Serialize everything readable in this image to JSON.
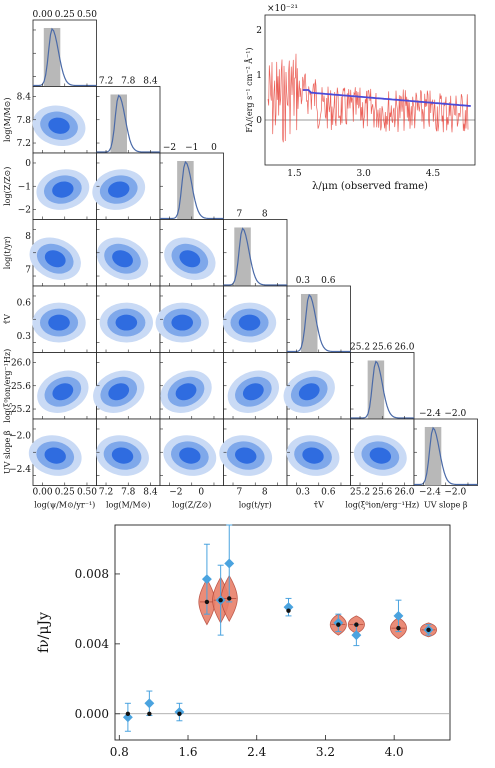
{
  "corner": {
    "params": [
      "log(ψ/M⊙/yr⁻¹)",
      "log(M/M⊙)",
      "log(Z/Z⊙)",
      "log(t/yr)",
      "τ̂V",
      "log(ξ⁰ion/erg⁻¹Hz)",
      "UV slope β"
    ],
    "ylabels": [
      "log(M/M⊙)",
      "log(Z/Z⊙)",
      "log(t/yr)",
      "τ̂V",
      "log(ξ⁰ion/erg⁻¹Hz)",
      "UV slope β"
    ],
    "top_ticks": [
      [
        "0.00",
        "0.25",
        "0.50"
      ],
      [
        "7.2",
        "7.8",
        "8.4"
      ],
      [
        "−2",
        "−1",
        "0"
      ],
      [
        "7",
        "8"
      ],
      [
        "0.3",
        "0.6"
      ],
      [
        "25.2",
        "25.6",
        "26.0"
      ],
      [
        "−2.4",
        "−2.0"
      ]
    ],
    "bottom_ticks": [
      [
        "0.00",
        "0.25",
        "0.50"
      ],
      [
        "7.2",
        "7.8",
        "8.4"
      ],
      [
        "−2",
        "0"
      ],
      [
        "7",
        "8"
      ],
      [
        "0.3",
        "0.6"
      ],
      [
        "25.2",
        "25.6",
        "26.0"
      ],
      [
        "−2.4",
        "−2.0"
      ]
    ],
    "left_ticks": [
      [
        "8.4",
        "7.8",
        "7.2"
      ],
      [
        "0",
        "−1",
        "−2"
      ],
      [
        "8",
        "7"
      ],
      [
        "0.6",
        "0.3"
      ],
      [
        "26.0",
        "25.6",
        "25.2"
      ],
      [
        "−2.0",
        "−2.4"
      ]
    ],
    "colors": {
      "line": "#4a6aa8",
      "shade": "#b8b8b8",
      "c1": "#2f6ce0",
      "c2": "#7fa8ea",
      "c3": "#c9daf5"
    }
  },
  "spectrum": {
    "exponent": "×10⁻²¹",
    "ylabel": "Fλ/(erg s⁻¹ cm⁻² Å⁻¹)",
    "xlabel": "λ/μm (observed frame)",
    "xticks": [
      "1.5",
      "3.0",
      "4.5"
    ],
    "yticks": [
      "2",
      "1",
      "0"
    ],
    "colors": {
      "data": "#e8453c",
      "model": "#4a4ad8"
    }
  },
  "chart_data": {
    "type": "scatter",
    "xlabel": "",
    "ylabel": "fν/μJy",
    "xlim": [
      0.75,
      4.65
    ],
    "ylim": [
      -0.0015,
      0.0108
    ],
    "xticks": [
      "0.8",
      "1.6",
      "2.4",
      "3.2",
      "4.0"
    ],
    "yticks": [
      "0.008",
      "0.004",
      "0.000"
    ],
    "colors": {
      "observed": "#4aa3df",
      "model": "#111111",
      "violin": "#e8806a",
      "violin_edge": "#b84a3a"
    },
    "observed": [
      {
        "x": 0.9,
        "y": -0.0002,
        "yerr": 0.0008
      },
      {
        "x": 1.15,
        "y": 0.0006,
        "yerr": 0.0007
      },
      {
        "x": 1.5,
        "y": 0.0001,
        "yerr": 0.0005
      },
      {
        "x": 1.82,
        "y": 0.0077,
        "yerr": 0.002
      },
      {
        "x": 1.98,
        "y": 0.0065,
        "yerr": 0.002
      },
      {
        "x": 2.08,
        "y": 0.0086,
        "yerr": 0.0022
      },
      {
        "x": 2.77,
        "y": 0.0061,
        "yerr": 0.0005
      },
      {
        "x": 3.35,
        "y": 0.0052,
        "yerr": 0.0005
      },
      {
        "x": 3.56,
        "y": 0.0045,
        "yerr": 0.0006
      },
      {
        "x": 4.05,
        "y": 0.0056,
        "yerr": 0.0009
      },
      {
        "x": 4.4,
        "y": 0.0048,
        "yerr": 0.0003
      }
    ],
    "model": [
      {
        "x": 0.9,
        "y": 0.0
      },
      {
        "x": 1.15,
        "y": 0.0
      },
      {
        "x": 1.5,
        "y": 0.0
      },
      {
        "x": 1.82,
        "y": 0.0064,
        "spread": 0.0013
      },
      {
        "x": 1.98,
        "y": 0.0065,
        "spread": 0.0013
      },
      {
        "x": 2.08,
        "y": 0.0066,
        "spread": 0.0013
      },
      {
        "x": 2.77,
        "y": 0.0059
      },
      {
        "x": 3.35,
        "y": 0.0051,
        "spread": 0.0006
      },
      {
        "x": 3.56,
        "y": 0.0051,
        "spread": 0.0005
      },
      {
        "x": 4.05,
        "y": 0.0049,
        "spread": 0.0006
      },
      {
        "x": 4.4,
        "y": 0.0048,
        "spread": 0.0004
      }
    ]
  }
}
